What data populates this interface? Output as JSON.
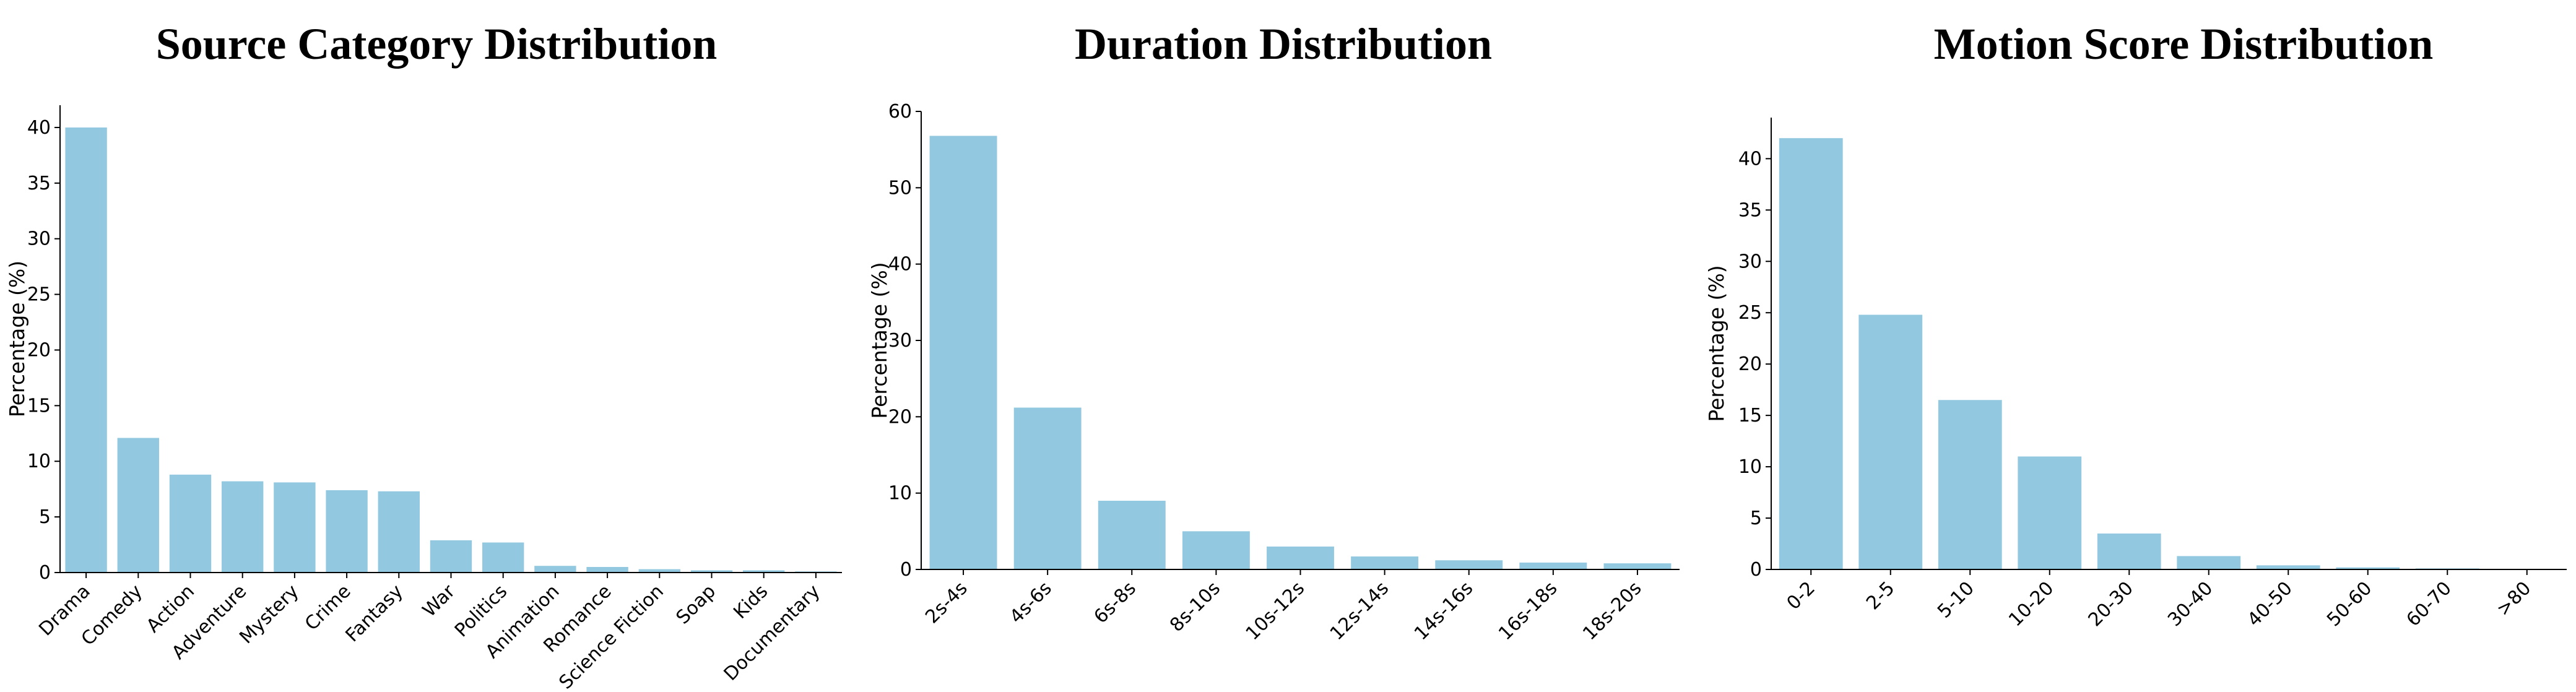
{
  "colors": {
    "bar": "#92c9e0",
    "axis": "#000000"
  },
  "chart_data": [
    {
      "type": "bar",
      "title": "Source Category Distribution",
      "xlabel": "",
      "ylabel": "Percentage (%)",
      "ylim": [
        0,
        42
      ],
      "yticks": [
        "0",
        "5",
        "10",
        "15",
        "20",
        "25",
        "30",
        "35",
        "40"
      ],
      "categories": [
        "Drama",
        "Comedy",
        "Action",
        "Adventure",
        "Mystery",
        "Crime",
        "Fantasy",
        "War",
        "Politics",
        "Animation",
        "Romance",
        "Science Fiction",
        "Soap",
        "Kids",
        "Documentary"
      ],
      "values": [
        40.0,
        12.1,
        8.8,
        8.2,
        8.1,
        7.4,
        7.3,
        2.9,
        2.7,
        0.6,
        0.5,
        0.3,
        0.2,
        0.2,
        0.1
      ],
      "grid": false
    },
    {
      "type": "bar",
      "title": "Duration Distribution",
      "xlabel": "",
      "ylabel": "Percentage (%)",
      "ylim": [
        0,
        60
      ],
      "yticks": [
        "0",
        "10",
        "20",
        "30",
        "40",
        "50",
        "60"
      ],
      "categories": [
        "2s-4s",
        "4s-6s",
        "6s-8s",
        "8s-10s",
        "10s-12s",
        "12s-14s",
        "14s-16s",
        "16s-18s",
        "18s-20s"
      ],
      "values": [
        56.8,
        21.2,
        9.0,
        5.0,
        3.0,
        1.7,
        1.2,
        0.9,
        0.8
      ],
      "grid": false
    },
    {
      "type": "bar",
      "title": "Motion Score Distribution",
      "xlabel": "",
      "ylabel": "Percentage (%)",
      "ylim": [
        0,
        44
      ],
      "yticks": [
        "0",
        "5",
        "10",
        "15",
        "20",
        "25",
        "30",
        "35",
        "40"
      ],
      "categories": [
        "0-2",
        "2-5",
        "5-10",
        "10-20",
        "20-30",
        "30-40",
        "40-50",
        "50-60",
        "60-70",
        ">80"
      ],
      "values": [
        42.0,
        24.8,
        16.5,
        11.0,
        3.5,
        1.3,
        0.4,
        0.2,
        0.1,
        0.05
      ],
      "grid": false
    }
  ]
}
